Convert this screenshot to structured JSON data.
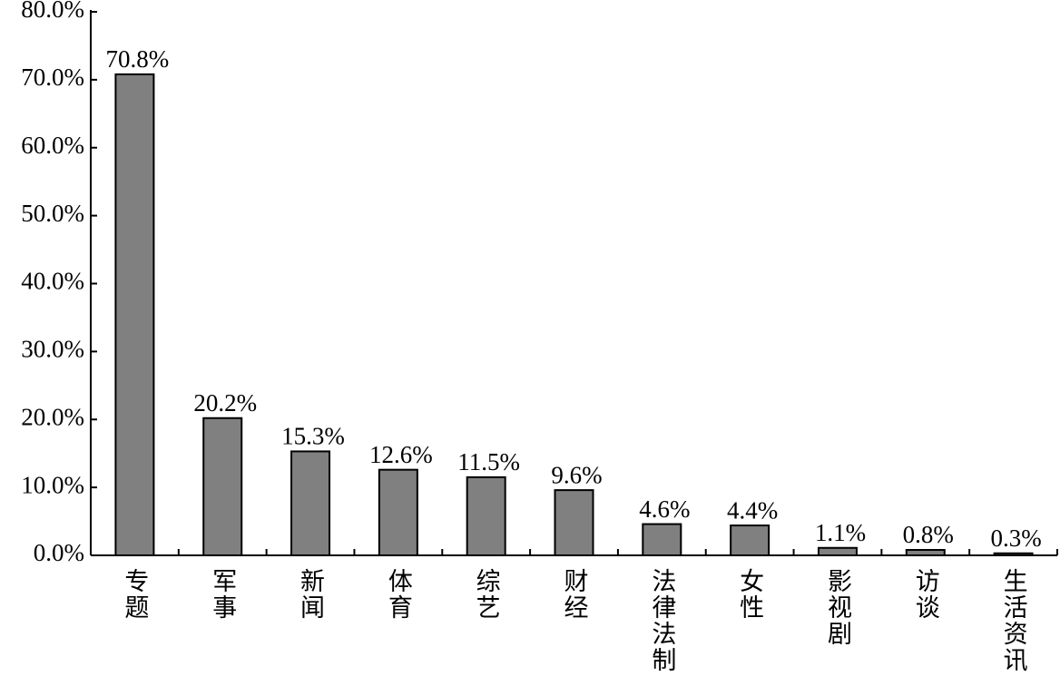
{
  "chart_data": {
    "type": "bar",
    "categories": [
      "专题",
      "军事",
      "新闻",
      "体育",
      "综艺",
      "财经",
      "法律法制",
      "女性",
      "影视剧",
      "访谈",
      "生活资讯"
    ],
    "values": [
      70.8,
      20.2,
      15.3,
      12.6,
      11.5,
      9.6,
      4.6,
      4.4,
      1.1,
      0.8,
      0.3
    ],
    "value_labels": [
      "70.8%",
      "20.2%",
      "15.3%",
      "12.6%",
      "11.5%",
      "9.6%",
      "4.6%",
      "4.4%",
      "1.1%",
      "0.8%",
      "0.3%"
    ],
    "color": "#808080",
    "ylim": [
      0,
      80
    ],
    "yticks": [
      {
        "value": 0,
        "label": "0.0%"
      },
      {
        "value": 10,
        "label": "10.0%"
      },
      {
        "value": 20,
        "label": "20.0%"
      },
      {
        "value": 30,
        "label": "30.0%"
      },
      {
        "value": 40,
        "label": "40.0%"
      },
      {
        "value": 50,
        "label": "50.0%"
      },
      {
        "value": 60,
        "label": "60.0%"
      },
      {
        "value": 70,
        "label": "70.0%"
      },
      {
        "value": 80,
        "label": "80.0%"
      }
    ],
    "grid": false
  }
}
